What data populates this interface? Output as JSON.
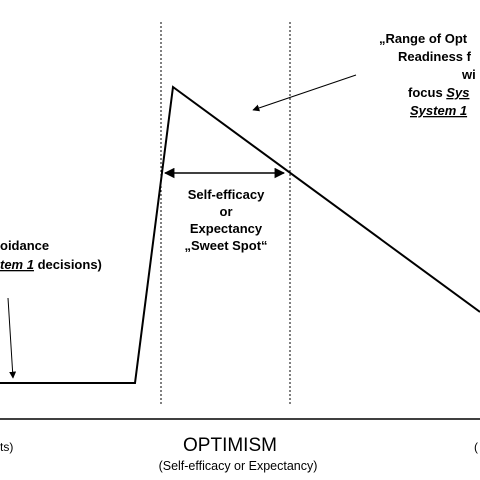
{
  "annotation_right": {
    "line1": "„Range of Opt",
    "line2": "Readiness f",
    "line3": "wi",
    "line4_prefix": "focus ",
    "line4_italic": "Sys",
    "line5_italic": "System 1"
  },
  "annotation_left": {
    "line1": "oidance",
    "line2_italic": "tem 1",
    "line2_suffix": " decisions)"
  },
  "sweet_spot": {
    "line1": "Self-efficacy",
    "line2": "or",
    "line3": "Expectancy",
    "line4": "„Sweet  Spot“"
  },
  "axis": {
    "title": "OPTIMISM",
    "subtitle": "(Self-efficacy or Expectancy)",
    "left_fragment": "ts)",
    "right_fragment": "("
  }
}
